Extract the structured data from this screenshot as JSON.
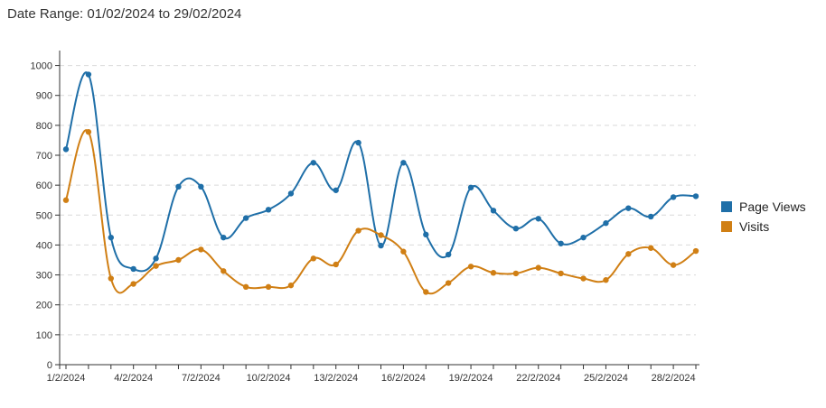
{
  "header": {
    "date_range_label": "Date Range: 01/02/2024 to 29/02/2024"
  },
  "colors": {
    "page_views": "#1f6fa8",
    "visits": "#d07f14",
    "grid": "#d9d9d9",
    "axis": "#333333"
  },
  "legend": {
    "placement": "right",
    "items": [
      {
        "label": "Page Views",
        "color": "#1f6fa8"
      },
      {
        "label": "Visits",
        "color": "#d07f14"
      }
    ]
  },
  "chart_data": {
    "type": "line",
    "smooth": true,
    "grid": "horizontal dashed",
    "ylim": [
      0,
      1050
    ],
    "y_ticks": [
      "0",
      "100",
      "200",
      "300",
      "400",
      "500",
      "600",
      "700",
      "800",
      "900",
      "1000"
    ],
    "x": [
      "1/2/2024",
      "2/2/2024",
      "3/2/2024",
      "4/2/2024",
      "5/2/2024",
      "6/2/2024",
      "7/2/2024",
      "8/2/2024",
      "9/2/2024",
      "10/2/2024",
      "11/2/2024",
      "12/2/2024",
      "13/2/2024",
      "14/2/2024",
      "15/2/2024",
      "16/2/2024",
      "17/2/2024",
      "18/2/2024",
      "19/2/2024",
      "20/2/2024",
      "21/2/2024",
      "22/2/2024",
      "23/2/2024",
      "24/2/2024",
      "25/2/2024",
      "26/2/2024",
      "27/2/2024",
      "28/2/2024",
      "29/2/2024"
    ],
    "x_tick_labels": [
      "1/2/2024",
      "4/2/2024",
      "7/2/2024",
      "10/2/2024",
      "13/2/2024",
      "16/2/2024",
      "19/2/2024",
      "22/2/2024",
      "25/2/2024",
      "28/2/2024"
    ],
    "series": [
      {
        "name": "Page Views",
        "color": "#1f6fa8",
        "values": [
          720,
          970,
          425,
          320,
          355,
          595,
          595,
          425,
          490,
          518,
          572,
          675,
          583,
          742,
          398,
          675,
          435,
          368,
          592,
          515,
          455,
          488,
          405,
          425,
          473,
          523,
          495,
          560,
          563
        ]
      },
      {
        "name": "Visits",
        "color": "#d07f14",
        "values": [
          550,
          778,
          288,
          270,
          330,
          350,
          385,
          313,
          260,
          260,
          265,
          355,
          335,
          448,
          433,
          378,
          243,
          273,
          328,
          307,
          305,
          324,
          305,
          288,
          283,
          370,
          390,
          333,
          380
        ]
      }
    ]
  }
}
